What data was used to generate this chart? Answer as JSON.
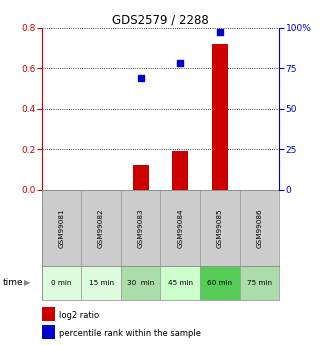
{
  "title": "GDS2579 / 2288",
  "samples": [
    "GSM99081",
    "GSM99082",
    "GSM99083",
    "GSM99084",
    "GSM99085",
    "GSM99086"
  ],
  "time_labels": [
    "0 min",
    "15 min",
    "30  min",
    "45 min",
    "60 min",
    "75 min"
  ],
  "log2_ratio": [
    0,
    0,
    0.12,
    0.19,
    0.72,
    0
  ],
  "percentile_rank": [
    null,
    null,
    69,
    78,
    97,
    null
  ],
  "bar_color": "#cc0000",
  "dot_color": "#0000cc",
  "left_ylim": [
    0,
    0.8
  ],
  "right_ylim": [
    0,
    100
  ],
  "left_yticks": [
    0,
    0.2,
    0.4,
    0.6,
    0.8
  ],
  "right_yticks": [
    0,
    25,
    50,
    75,
    100
  ],
  "right_yticklabels": [
    "0",
    "25",
    "50",
    "75",
    "100%"
  ],
  "sample_box_color": "#cccccc",
  "time_box_colors": [
    "#ddfcdd",
    "#ddfcdd",
    "#aaddaa",
    "#ccffcc",
    "#55cc55",
    "#aaddaa"
  ],
  "bg_color": "#ffffff",
  "left_axis_color": "#cc0000",
  "right_axis_color": "#0000cc"
}
